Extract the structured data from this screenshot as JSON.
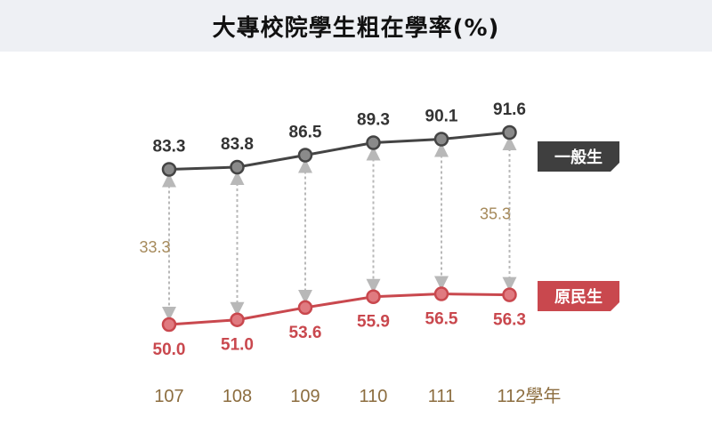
{
  "title": "大專校院學生粗在學率(%)",
  "colors": {
    "general": "#444444",
    "general_marker": "#8a8a8a",
    "indigenous": "#c9484e",
    "indigenous_marker": "#e07a80",
    "gap_arrow": "#b8b8b8",
    "gap_label": "#a68a5b",
    "tick_label": "#8c6d3f",
    "legend_general_bg": "#3f3f3f",
    "legend_indigenous_bg": "#c9484e",
    "title_bar_bg": "#eef0f4"
  },
  "chart_data": {
    "type": "line",
    "categories": [
      "107",
      "108",
      "109",
      "110",
      "111",
      "112學年"
    ],
    "series": [
      {
        "name": "一般生",
        "values": [
          83.3,
          83.8,
          86.5,
          89.3,
          90.1,
          91.6
        ],
        "labels": [
          "83.3",
          "83.8",
          "86.5",
          "89.3",
          "90.1",
          "91.6"
        ]
      },
      {
        "name": "原民生",
        "values": [
          50.0,
          51.0,
          53.6,
          55.9,
          56.5,
          56.3
        ],
        "labels": [
          "50.0",
          "51.0",
          "53.6",
          "55.9",
          "56.5",
          "56.3"
        ]
      }
    ],
    "gap_annotations": [
      {
        "category": "107",
        "value": 33.3,
        "label": "33.3"
      },
      {
        "category": "112學年",
        "value": 35.3,
        "label": "35.3"
      }
    ],
    "title": "大專校院學生粗在學率(%)",
    "xlabel": "",
    "ylabel": "",
    "legend": "right",
    "grid": false,
    "y_axis_visible": false
  }
}
